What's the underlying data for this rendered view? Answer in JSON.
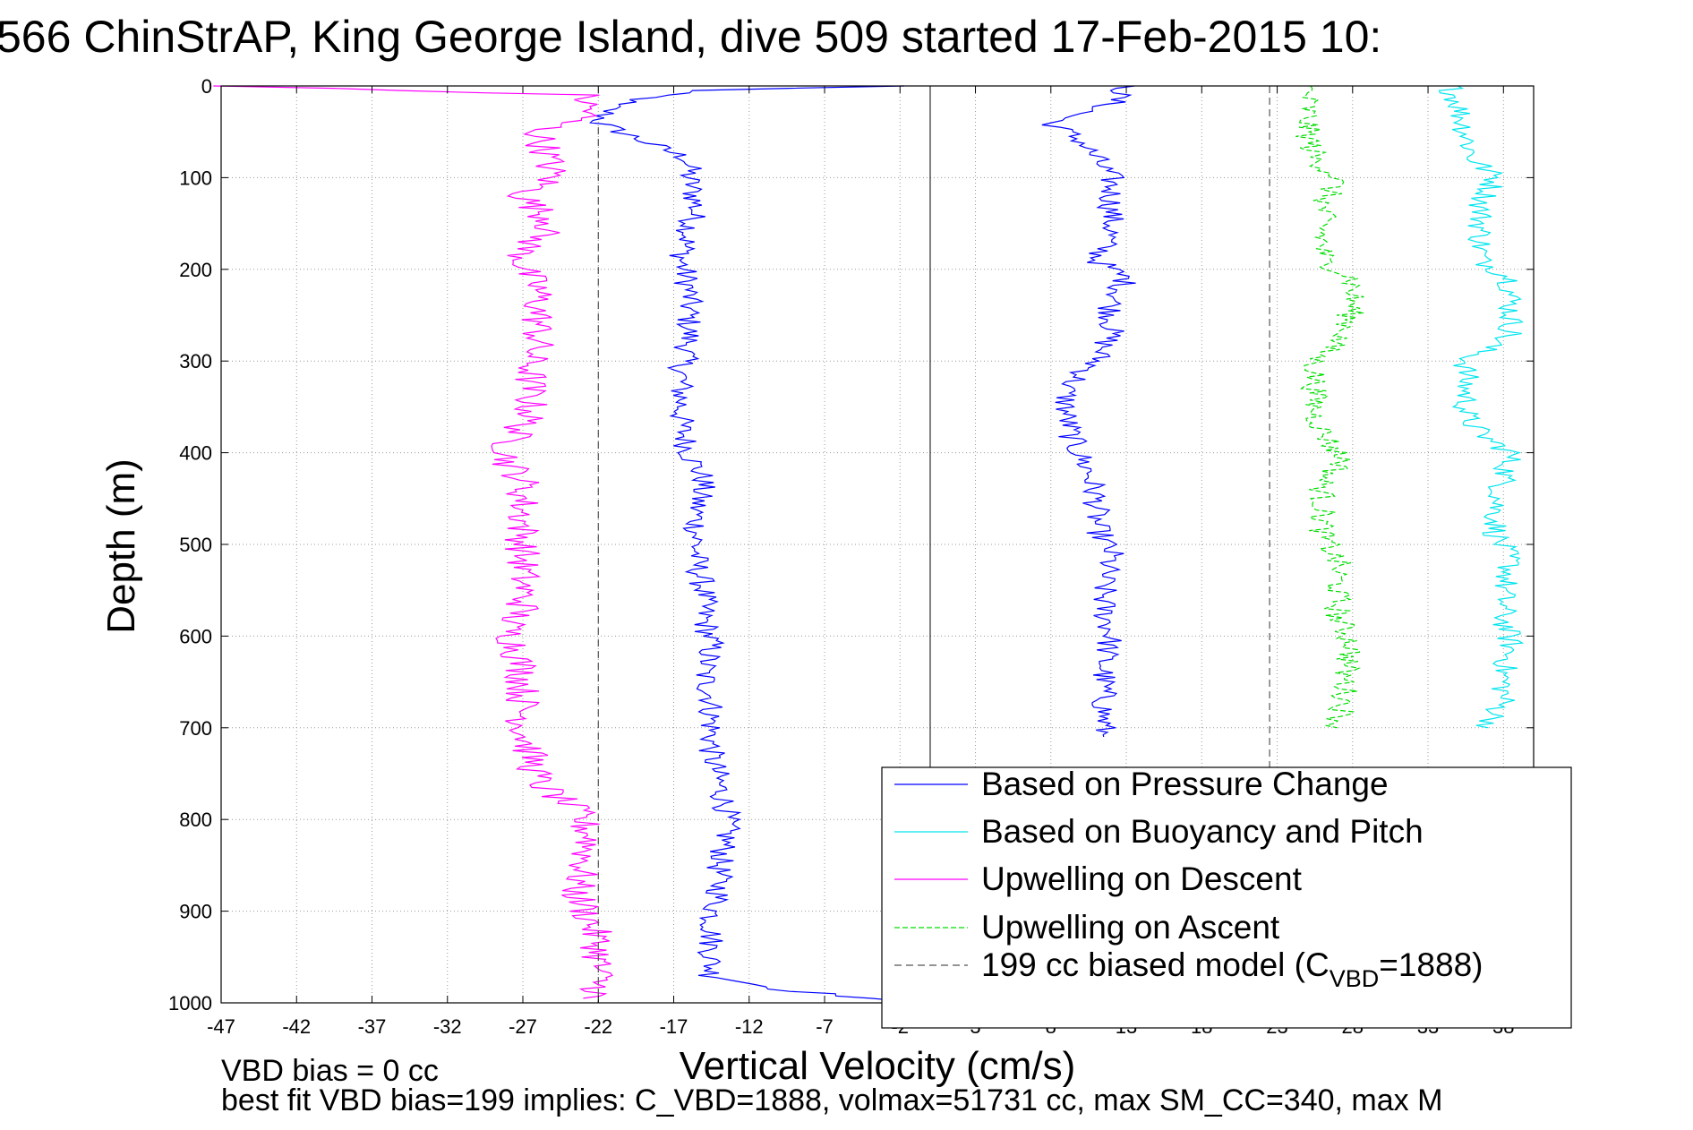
{
  "chart_data": {
    "type": "line",
    "title": "566 ChinStrAP, King George Island, dive 509 started 17-Feb-2015 10:",
    "xlabel": "Vertical Velocity (cm/s)",
    "ylabel": "Depth (m)",
    "xlim": [
      -47,
      40
    ],
    "ylim": [
      0,
      1000
    ],
    "y_reversed": true,
    "grid": true,
    "x_ticks": [
      "-47",
      "-42",
      "-37",
      "-32",
      "-27",
      "-22",
      "-17",
      "-12",
      "-7",
      "-2",
      "3",
      "8",
      "13",
      "18",
      "23",
      "28",
      "33",
      "38"
    ],
    "y_ticks": [
      "0",
      "100",
      "200",
      "300",
      "400",
      "500",
      "600",
      "700",
      "800",
      "900",
      "1000"
    ],
    "legend_position": "bottom-right",
    "series": [
      {
        "name": "Based on Pressure Change",
        "color": "#0000ff",
        "style": "solid",
        "segments": [
          {
            "y": [
              0,
              5,
              20,
              40,
              60,
              80,
              100,
              130,
              160,
              190,
              220,
              250,
              280,
              310,
              340,
              370,
              400,
              430,
              460,
              490,
              520,
              550,
              580,
              610,
              640,
              670,
              700,
              730,
              760,
              790,
              820,
              850,
              880,
              910,
              940,
              970,
              985,
              995,
              1000
            ],
            "x": [
              -2,
              -16,
              -21,
              -22,
              -19,
              -16,
              -16,
              -15.5,
              -16,
              -16.5,
              -16,
              -16,
              -16,
              -16.5,
              -16.5,
              -16.5,
              -16,
              -15,
              -15.5,
              -15.5,
              -15.5,
              -15,
              -15,
              -14.5,
              -15,
              -14.5,
              -14.5,
              -14.5,
              -14,
              -13.5,
              -13.5,
              -14,
              -14,
              -14.5,
              -14.5,
              -14.5,
              -10,
              -4,
              -2
            ]
          },
          {
            "y": [
              0,
              20,
              40,
              60,
              80,
              100,
              130,
              160,
              190,
              210,
              240,
              270,
              300,
              330,
              360,
              390,
              420,
              450,
              480,
              510,
              540,
              570,
              600,
              630,
              660,
              690,
              710
            ],
            "x": [
              13,
              12,
              8,
              10,
              11,
              12,
              12,
              12,
              11,
              13,
              12,
              12,
              11,
              9,
              9,
              9.5,
              10.5,
              11,
              11,
              12,
              11.5,
              11.5,
              12,
              11.5,
              11.5,
              11.5,
              11.5
            ]
          },
          {
            "y": [
              965,
              990,
              997
            ],
            "x": [
              10,
              5,
              1
            ]
          }
        ]
      },
      {
        "name": "Based on Buoyancy and Pitch",
        "color": "#00e5ee",
        "style": "solid",
        "segments": [
          {
            "y": [
              0,
              20,
              50,
              80,
              100,
              130,
              160,
              190,
              210,
              240,
              270,
              300,
              330,
              360,
              380,
              400,
              430,
              460,
              490,
              520,
              550,
              580,
              610,
              640,
              670,
              700
            ],
            "x": [
              34.5,
              35,
              35.5,
              36,
              37.5,
              36.5,
              36.5,
              36.5,
              38.5,
              38.5,
              38.5,
              35.5,
              35.5,
              35.5,
              36.5,
              38.5,
              38,
              37.5,
              37.5,
              38.5,
              38,
              38,
              38.5,
              38,
              38,
              37
            ]
          },
          {
            "y": [
              750,
              780,
              790
            ],
            "x": [
              39.5,
              39.5,
              39.5
            ]
          }
        ]
      },
      {
        "name": "Upwelling on Descent",
        "color": "#ff00ff",
        "style": "solid",
        "segments": [
          {
            "y": [
              0,
              10,
              30,
              50,
              70,
              100,
              120,
              150,
              180,
              200,
              220,
              250,
              280,
              300,
              330,
              360,
              390,
              410,
              430,
              460,
              490,
              510,
              540,
              570,
              590,
              610,
              640,
              670,
              700,
              730,
              760,
              790,
              820,
              850,
              880,
              910,
              940,
              970,
              990,
              995
            ],
            "x": [
              -46.5,
              -23,
              -22.5,
              -26,
              -25.5,
              -25,
              -27,
              -25,
              -27,
              -27,
              -26,
              -26,
              -26,
              -26.5,
              -26.5,
              -26.5,
              -28,
              -28,
              -27,
              -27,
              -27,
              -27,
              -27,
              -27,
              -28,
              -27.5,
              -27,
              -27,
              -27,
              -26.5,
              -26,
              -23.5,
              -22.5,
              -23,
              -23.5,
              -22.5,
              -22,
              -22,
              -22,
              -23
            ]
          }
        ]
      },
      {
        "name": "Upwelling on Ascent",
        "color": "#00dd00",
        "style": "dashed",
        "segments": [
          {
            "y": [
              0,
              20,
              50,
              80,
              100,
              130,
              160,
              190,
              210,
              240,
              270,
              300,
              330,
              360,
              390,
              410,
              430,
              460,
              490,
              520,
              550,
              580,
              610,
              640,
              670,
              700
            ],
            "x": [
              25,
              25,
              25,
              25.5,
              27,
              26,
              26,
              26,
              28,
              28,
              27.5,
              25.5,
              25.5,
              25.5,
              26.5,
              27.5,
              26,
              26,
              26,
              27,
              27,
              27,
              28,
              27.5,
              27.5,
              27
            ]
          },
          {
            "y": [
              990,
              995
            ],
            "x": [
              23,
              40
            ]
          }
        ]
      },
      {
        "name": "199 cc biased model (C_VBD=1888)",
        "color": "#555555",
        "style": "dashed",
        "segments": [
          {
            "y": [
              45,
              1000
            ],
            "x": [
              -22,
              -22
            ]
          },
          {
            "y": [
              0,
              1000
            ],
            "x": [
              22.5,
              22.5
            ]
          }
        ]
      }
    ],
    "legend": {
      "entries": [
        {
          "label": "Based on Pressure Change",
          "color": "#0000ff",
          "style": "solid"
        },
        {
          "label": "Based on Buoyancy and Pitch",
          "color": "#00e5ee",
          "style": "solid"
        },
        {
          "label": "Upwelling on Descent",
          "color": "#ff00ff",
          "style": "solid"
        },
        {
          "label": "Upwelling on Ascent",
          "color": "#00dd00",
          "style": "dashed"
        },
        {
          "label": "199 cc biased model (C",
          "sub": "VBD",
          "tail": "=1888)",
          "color": "#555555",
          "style": "dashed"
        }
      ]
    },
    "zero_line_x": 0,
    "annotations": {
      "line1": "VBD bias = 0 cc",
      "line2": "best fit VBD bias=199 implies: C_VBD=1888, volmax=51731 cc, max SM_CC=340, max M"
    }
  }
}
